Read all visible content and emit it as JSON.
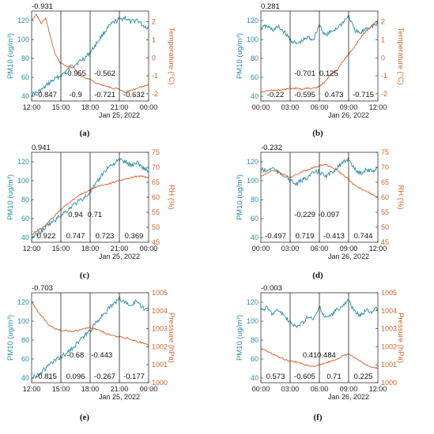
{
  "colors": {
    "pm10": "#2a8fa6",
    "secondary": "#d4622b"
  },
  "chart_data": [
    {
      "id": "a",
      "type": "line",
      "panel_label": "(a)",
      "left_axis": {
        "label": "PM10 (ug/m³)",
        "ylim": [
          35,
          130
        ],
        "ticks": [
          40,
          60,
          80,
          100,
          120
        ]
      },
      "right_axis": {
        "label": "Temperature (°C)",
        "ylim": [
          -2.4,
          2.6
        ],
        "ticks": [
          -2,
          -1,
          0,
          1,
          2
        ]
      },
      "x_ticks": [
        "12:00",
        "15:00",
        "18:00",
        "21:00",
        "00:00"
      ],
      "date_label": "Jan 25, 2022",
      "split_positions": [
        0.25,
        0.5,
        0.75
      ],
      "top_corr": "-0.931",
      "mid_corrs": [
        {
          "pos": 0.375,
          "text": "-0.955"
        },
        {
          "pos": 0.625,
          "text": "-0.562"
        }
      ],
      "bottom_corrs": [
        "-0.847",
        "-0.9",
        "-0.721",
        "-0.632"
      ],
      "series": [
        {
          "name": "PM10",
          "axis": "left",
          "x": [
            0,
            0.05,
            0.1,
            0.15,
            0.2,
            0.25,
            0.3,
            0.35,
            0.4,
            0.45,
            0.5,
            0.55,
            0.6,
            0.65,
            0.7,
            0.75,
            0.8,
            0.85,
            0.9,
            0.95,
            1.0
          ],
          "y": [
            42,
            44,
            48,
            54,
            58,
            62,
            67,
            72,
            76,
            80,
            86,
            95,
            104,
            112,
            118,
            121,
            123,
            118,
            121,
            115,
            112
          ]
        },
        {
          "name": "Temperature",
          "axis": "right",
          "x": [
            0,
            0.04,
            0.08,
            0.12,
            0.16,
            0.2,
            0.25,
            0.3,
            0.35,
            0.4,
            0.45,
            0.5,
            0.55,
            0.6,
            0.65,
            0.7,
            0.75,
            0.8,
            0.85,
            0.9,
            0.95,
            1.0
          ],
          "y": [
            2.1,
            2.4,
            1.9,
            2.2,
            1.2,
            0.2,
            -0.3,
            -0.5,
            -0.4,
            -0.9,
            -1.1,
            -1.2,
            -1.4,
            -1.5,
            -1.6,
            -1.7,
            -1.75,
            -1.9,
            -1.8,
            -1.7,
            -1.6,
            -1.5
          ]
        }
      ]
    },
    {
      "id": "b",
      "type": "line",
      "panel_label": "(b)",
      "left_axis": {
        "label": "PM10 (ug/m³)",
        "ylim": [
          35,
          130
        ],
        "ticks": [
          40,
          60,
          80,
          100,
          120
        ]
      },
      "right_axis": {
        "label": "Temperature (°C)",
        "ylim": [
          -2.4,
          2.6
        ],
        "ticks": [
          -2,
          -1,
          0,
          1,
          2
        ]
      },
      "x_ticks": [
        "00:00",
        "03:00",
        "06:00",
        "09:00",
        "12:00"
      ],
      "date_label": "Jan 26, 2022",
      "split_positions": [
        0.25,
        0.5,
        0.75
      ],
      "top_corr": "0.281",
      "mid_corrs": [
        {
          "pos": 0.375,
          "text": "-0.701"
        },
        {
          "pos": 0.58,
          "text": "0.125"
        }
      ],
      "bottom_corrs": [
        "-0.22",
        "-0.595",
        "0.473",
        "-0.715"
      ],
      "series": [
        {
          "name": "PM10",
          "axis": "left",
          "x": [
            0,
            0.05,
            0.1,
            0.15,
            0.2,
            0.25,
            0.3,
            0.35,
            0.4,
            0.45,
            0.5,
            0.55,
            0.6,
            0.65,
            0.7,
            0.75,
            0.8,
            0.85,
            0.9,
            0.95,
            1.0
          ],
          "y": [
            112,
            114,
            110,
            113,
            108,
            100,
            95,
            98,
            102,
            100,
            116,
            104,
            108,
            112,
            118,
            125,
            110,
            106,
            112,
            114,
            116
          ]
        },
        {
          "name": "Temperature",
          "axis": "right",
          "x": [
            0,
            0.05,
            0.1,
            0.15,
            0.2,
            0.25,
            0.3,
            0.35,
            0.4,
            0.45,
            0.5,
            0.55,
            0.6,
            0.65,
            0.7,
            0.75,
            0.8,
            0.85,
            0.9,
            0.95,
            1.0
          ],
          "y": [
            -1.9,
            -1.85,
            -1.8,
            -1.8,
            -1.75,
            -1.7,
            -1.7,
            -1.75,
            -1.7,
            -1.7,
            -1.6,
            -1.3,
            -0.9,
            -0.7,
            -0.2,
            0.2,
            0.6,
            1.1,
            1.5,
            1.8,
            2.1
          ]
        }
      ]
    },
    {
      "id": "c",
      "type": "line",
      "panel_label": "(c)",
      "left_axis": {
        "label": "PM10 (ug/m³)",
        "ylim": [
          35,
          130
        ],
        "ticks": [
          40,
          60,
          80,
          100,
          120
        ]
      },
      "right_axis": {
        "label": "RH (%)",
        "ylim": [
          45,
          75
        ],
        "ticks": [
          45,
          50,
          55,
          60,
          65,
          70,
          75
        ]
      },
      "x_ticks": [
        "12:00",
        "15:00",
        "18:00",
        "21:00",
        "00:00"
      ],
      "date_label": "Jan 25, 2022",
      "split_positions": [
        0.25,
        0.5,
        0.75
      ],
      "top_corr": "0.941",
      "mid_corrs": [
        {
          "pos": 0.375,
          "text": "0.94"
        },
        {
          "pos": 0.54,
          "text": "0.71"
        }
      ],
      "bottom_corrs": [
        "0.922",
        "0.747",
        "0.723",
        "0.369"
      ],
      "series": [
        {
          "name": "PM10",
          "axis": "left",
          "x": [
            0,
            0.05,
            0.1,
            0.15,
            0.2,
            0.25,
            0.3,
            0.35,
            0.4,
            0.45,
            0.5,
            0.55,
            0.6,
            0.65,
            0.7,
            0.75,
            0.8,
            0.85,
            0.9,
            0.95,
            1.0
          ],
          "y": [
            40,
            44,
            48,
            54,
            58,
            64,
            68,
            74,
            78,
            82,
            88,
            96,
            106,
            114,
            118,
            122,
            120,
            116,
            120,
            114,
            110
          ]
        },
        {
          "name": "RH",
          "axis": "right",
          "x": [
            0,
            0.05,
            0.1,
            0.15,
            0.2,
            0.25,
            0.3,
            0.35,
            0.4,
            0.45,
            0.5,
            0.55,
            0.6,
            0.65,
            0.7,
            0.75,
            0.8,
            0.85,
            0.9,
            0.95,
            1.0
          ],
          "y": [
            47.5,
            49,
            50,
            52,
            54,
            56,
            57.5,
            59,
            60.5,
            61.5,
            62.5,
            63.5,
            64,
            64.5,
            65,
            65.5,
            66,
            66.5,
            67,
            67,
            66.5
          ]
        }
      ]
    },
    {
      "id": "d",
      "type": "line",
      "panel_label": "(d)",
      "left_axis": {
        "label": "PM10 (ug/m³)",
        "ylim": [
          35,
          130
        ],
        "ticks": [
          40,
          60,
          80,
          100,
          120
        ]
      },
      "right_axis": {
        "label": "RH (%)",
        "ylim": [
          45,
          75
        ],
        "ticks": [
          45,
          50,
          55,
          60,
          65,
          70,
          75
        ]
      },
      "x_ticks": [
        "00:00",
        "03:00",
        "06:00",
        "09:00",
        "12:00"
      ],
      "date_label": "Jan 26, 2022",
      "split_positions": [
        0.25,
        0.5,
        0.75
      ],
      "top_corr": "-0.232",
      "mid_corrs": [
        {
          "pos": 0.375,
          "text": "-0.229"
        },
        {
          "pos": 0.58,
          "text": "-0.097"
        }
      ],
      "bottom_corrs": [
        "-0.497",
        "0.719",
        "-0.413",
        "0.744"
      ],
      "series": [
        {
          "name": "PM10",
          "axis": "left",
          "x": [
            0,
            0.05,
            0.1,
            0.15,
            0.2,
            0.25,
            0.3,
            0.35,
            0.4,
            0.45,
            0.5,
            0.55,
            0.6,
            0.65,
            0.7,
            0.75,
            0.8,
            0.85,
            0.9,
            0.95,
            1.0
          ],
          "y": [
            112,
            110,
            114,
            108,
            106,
            100,
            96,
            100,
            104,
            108,
            110,
            104,
            108,
            114,
            118,
            124,
            112,
            108,
            112,
            110,
            114
          ]
        },
        {
          "name": "RH",
          "axis": "right",
          "x": [
            0,
            0.05,
            0.1,
            0.15,
            0.2,
            0.25,
            0.3,
            0.35,
            0.4,
            0.45,
            0.5,
            0.55,
            0.6,
            0.65,
            0.7,
            0.75,
            0.8,
            0.85,
            0.9,
            0.95,
            1.0
          ],
          "y": [
            67,
            68,
            69,
            68.5,
            67.5,
            66.5,
            67.5,
            68.5,
            69,
            70,
            70.5,
            71,
            70,
            69,
            67.5,
            66,
            64,
            63,
            62,
            61,
            60
          ]
        }
      ]
    },
    {
      "id": "e",
      "type": "line",
      "panel_label": "(e)",
      "left_axis": {
        "label": "PM10 (ug/m³)",
        "ylim": [
          35,
          130
        ],
        "ticks": [
          40,
          60,
          80,
          100,
          120
        ]
      },
      "right_axis": {
        "label": "Pressure (hPa)",
        "ylim": [
          1000,
          1005
        ],
        "ticks": [
          1000,
          1001,
          1002,
          1003,
          1004,
          1005
        ]
      },
      "x_ticks": [
        "12:00",
        "15:00",
        "18:00",
        "21:00",
        "00:00"
      ],
      "date_label": "Jan 25, 2022",
      "split_positions": [
        0.25,
        0.5,
        0.75
      ],
      "top_corr": "-0.703",
      "mid_corrs": [
        {
          "pos": 0.375,
          "text": "-0.68"
        },
        {
          "pos": 0.6,
          "text": "-0.443"
        }
      ],
      "bottom_corrs": [
        "-0.815",
        "0.096",
        "-0.267",
        "-0.177"
      ],
      "series": [
        {
          "name": "PM10",
          "axis": "left",
          "x": [
            0,
            0.05,
            0.1,
            0.15,
            0.2,
            0.25,
            0.3,
            0.35,
            0.4,
            0.45,
            0.5,
            0.55,
            0.6,
            0.65,
            0.7,
            0.75,
            0.8,
            0.85,
            0.9,
            0.95,
            1.0
          ],
          "y": [
            40,
            43,
            48,
            54,
            58,
            62,
            66,
            72,
            78,
            84,
            90,
            98,
            106,
            112,
            118,
            124,
            120,
            116,
            122,
            114,
            112
          ]
        },
        {
          "name": "Pressure",
          "axis": "right",
          "x": [
            0,
            0.05,
            0.1,
            0.15,
            0.2,
            0.25,
            0.3,
            0.35,
            0.4,
            0.45,
            0.5,
            0.55,
            0.6,
            0.65,
            0.7,
            0.75,
            0.8,
            0.85,
            0.9,
            0.95,
            1.0
          ],
          "y": [
            1004.5,
            1004.0,
            1003.6,
            1003.2,
            1003.0,
            1002.9,
            1002.9,
            1002.85,
            1002.9,
            1003.0,
            1003.05,
            1003.0,
            1002.85,
            1002.7,
            1002.6,
            1002.55,
            1002.5,
            1002.4,
            1002.3,
            1002.2,
            1002.1
          ]
        }
      ]
    },
    {
      "id": "f",
      "type": "line",
      "panel_label": "(f)",
      "left_axis": {
        "label": "PM10 (ug/m³)",
        "ylim": [
          35,
          130
        ],
        "ticks": [
          40,
          60,
          80,
          100,
          120
        ]
      },
      "right_axis": {
        "label": "Pressure (hPa)",
        "ylim": [
          1000,
          1005
        ],
        "ticks": [
          1000,
          1001,
          1002,
          1003,
          1004,
          1005
        ]
      },
      "x_ticks": [
        "00:00",
        "03:00",
        "06:00",
        "09:00",
        "12:00"
      ],
      "date_label": "Jan 26, 2022",
      "split_positions": [
        0.25,
        0.5,
        0.75
      ],
      "top_corr": "-0.003",
      "mid_corrs": [
        {
          "pos": 0.42,
          "text": "0.41"
        },
        {
          "pos": 0.56,
          "text": "0.484"
        }
      ],
      "bottom_corrs": [
        "0.573",
        "-0.605",
        "0.71",
        "0.225"
      ],
      "series": [
        {
          "name": "PM10",
          "axis": "left",
          "x": [
            0,
            0.05,
            0.1,
            0.15,
            0.2,
            0.25,
            0.3,
            0.35,
            0.4,
            0.45,
            0.5,
            0.55,
            0.6,
            0.65,
            0.7,
            0.75,
            0.8,
            0.85,
            0.9,
            0.95,
            1.0
          ],
          "y": [
            112,
            114,
            108,
            112,
            106,
            98,
            94,
            98,
            104,
            102,
            114,
            104,
            106,
            112,
            116,
            122,
            110,
            106,
            112,
            110,
            114
          ]
        },
        {
          "name": "Pressure",
          "axis": "right",
          "x": [
            0,
            0.05,
            0.1,
            0.15,
            0.2,
            0.25,
            0.3,
            0.35,
            0.4,
            0.45,
            0.5,
            0.55,
            0.6,
            0.65,
            0.7,
            0.75,
            0.8,
            0.85,
            0.9,
            0.95,
            1.0
          ],
          "y": [
            1001.9,
            1001.75,
            1001.6,
            1001.45,
            1001.3,
            1001.2,
            1001.15,
            1001.05,
            1000.95,
            1000.9,
            1001.0,
            1001.1,
            1001.2,
            1001.3,
            1001.5,
            1001.6,
            1001.4,
            1001.2,
            1001.0,
            1000.85,
            1000.8
          ]
        }
      ]
    }
  ]
}
